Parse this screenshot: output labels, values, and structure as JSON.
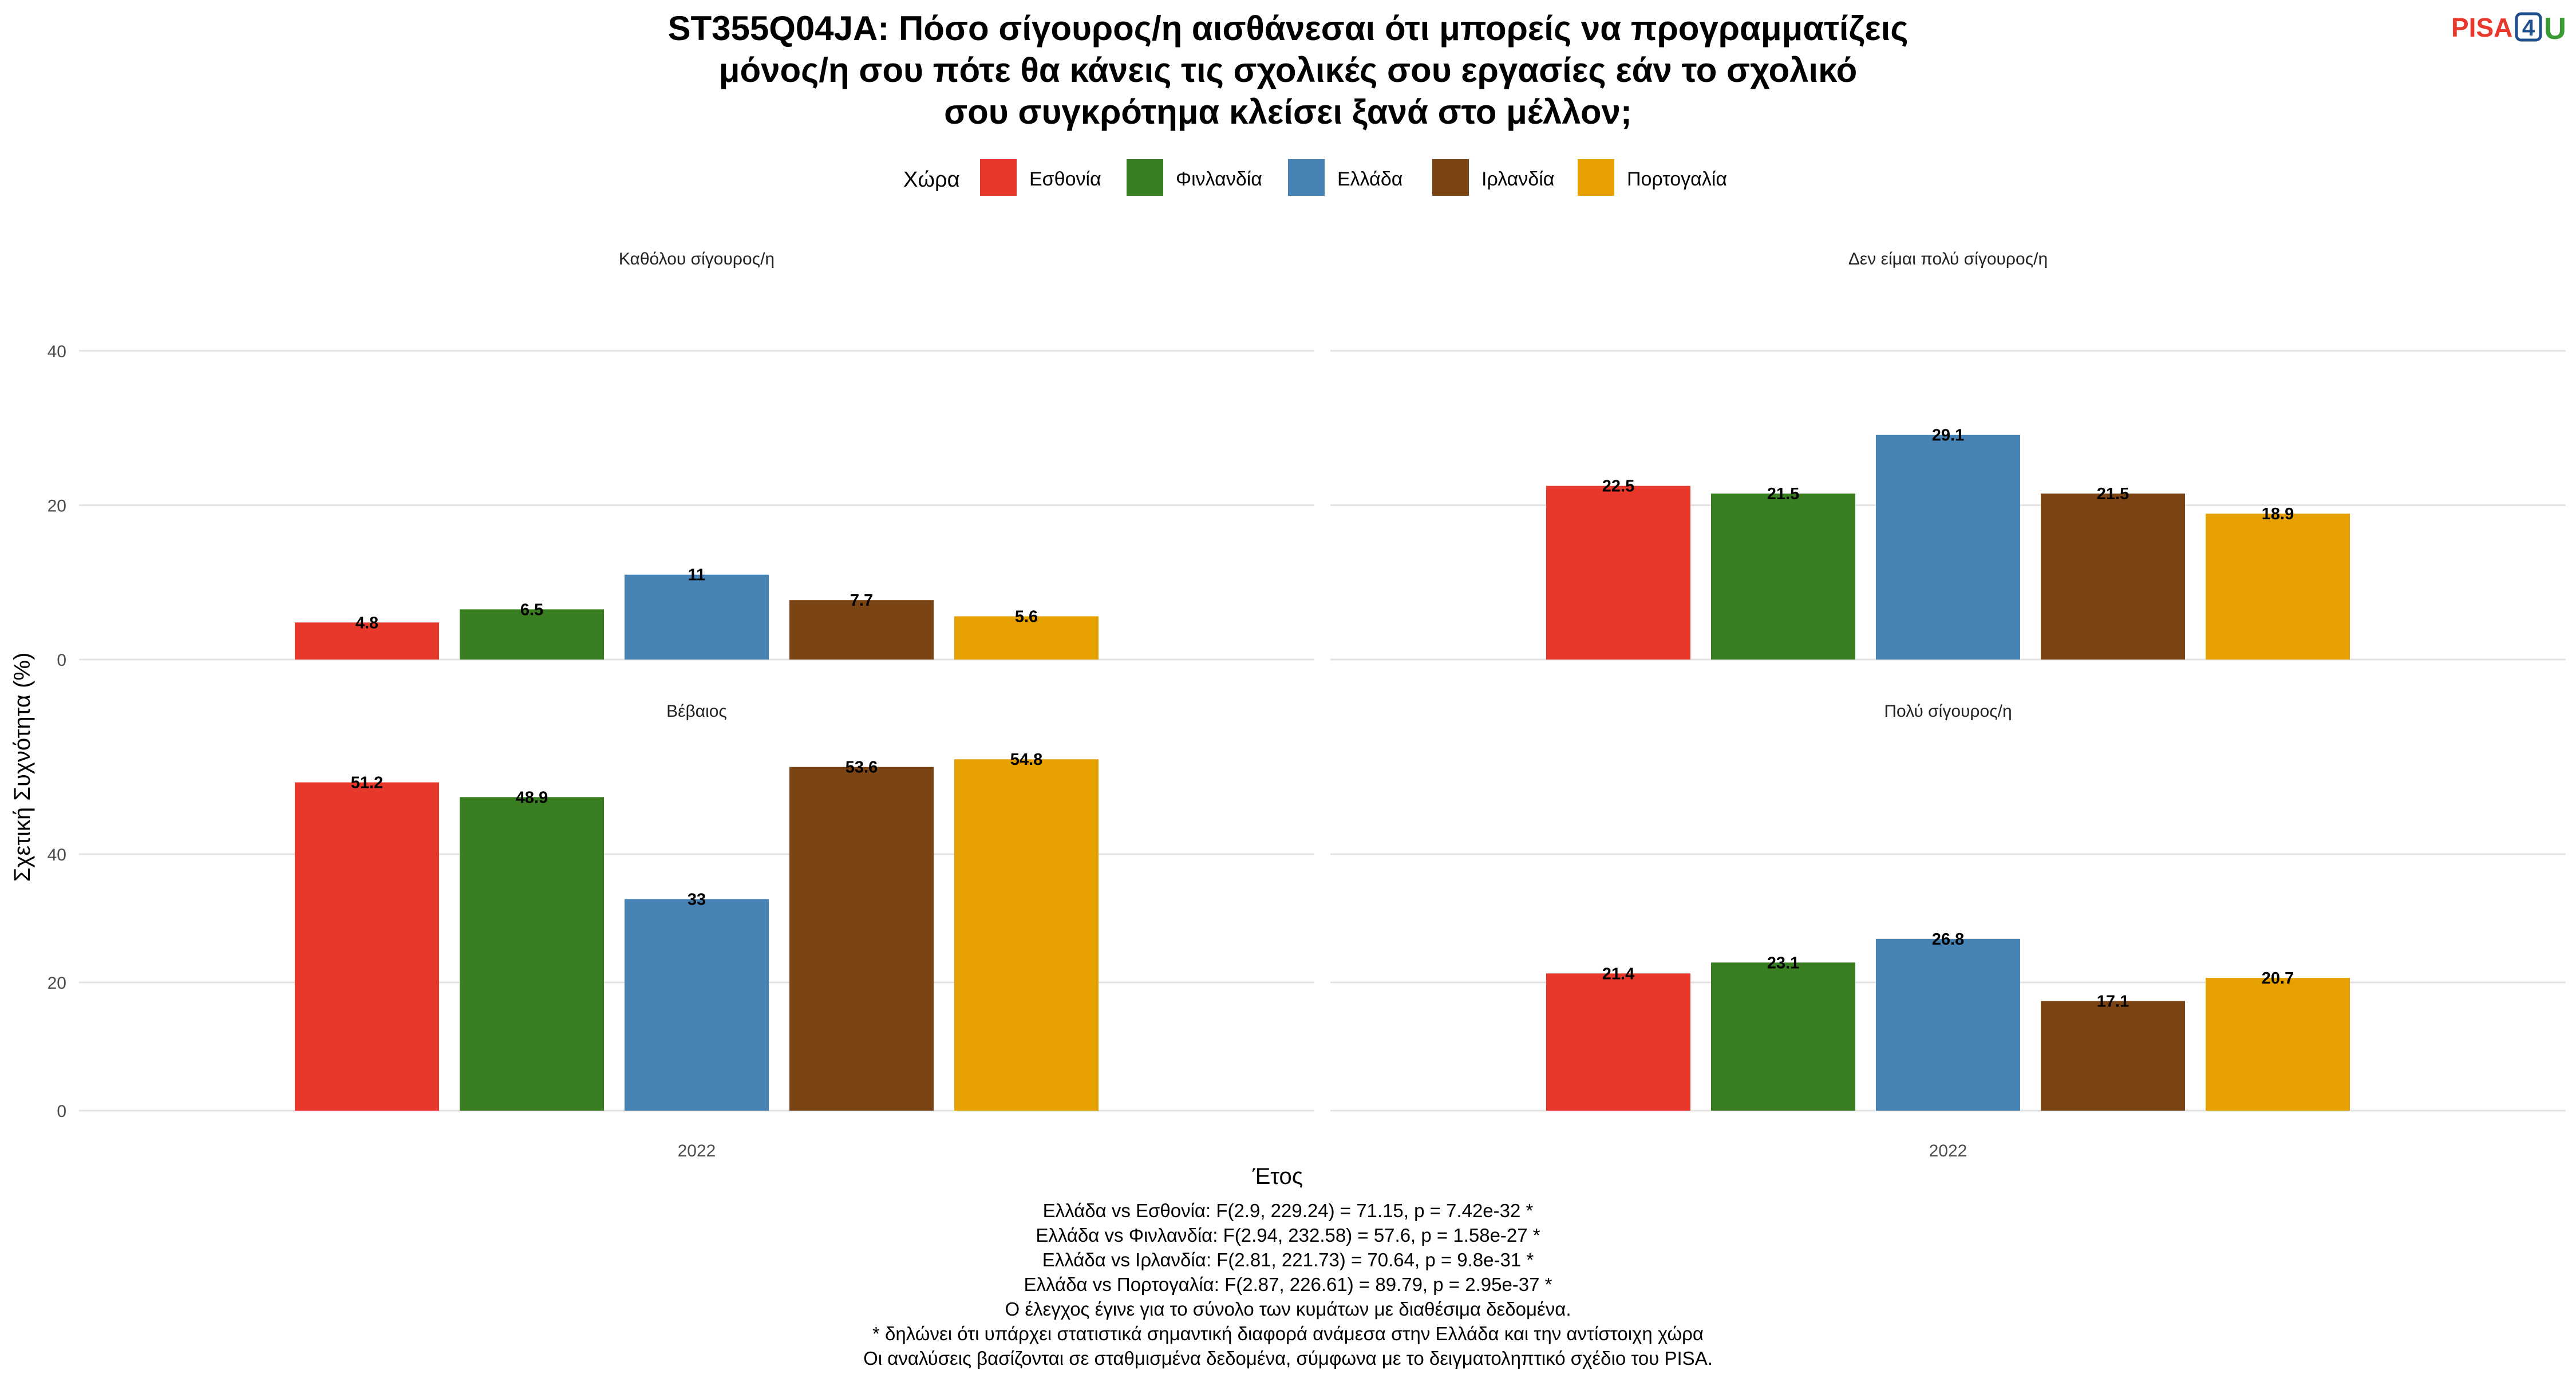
{
  "title_lines": [
    "ST355Q04JA: Πόσο σίγουρος/η αισθάνεσαι ότι μπορείς να προγραμματίζεις",
    "μόνος/η σου πότε θα κάνεις τις σχολικές σου εργασίες εάν το σχολικό",
    "σου συγκρότημα κλείσει ξανά στο μέλλον;"
  ],
  "logo": {
    "pisa": "PISA",
    "four": "4",
    "u": "U"
  },
  "legend": {
    "title": "Χώρα"
  },
  "colors": {
    "Εσθονία": "#e8382b",
    "Φινλανδία": "#3a7e22",
    "Ελλάδα": "#4682b4",
    "Ιρλανδία": "#7b4414",
    "Πορτογαλία": "#e6a000"
  },
  "chart_data": {
    "type": "bar",
    "xlabel": "Έτος",
    "ylabel": "Σχετική Συχνότητα (%)",
    "categories": [
      "2022"
    ],
    "countries": [
      "Εσθονία",
      "Φινλανδία",
      "Ελλάδα",
      "Ιρλανδία",
      "Πορτογαλία"
    ],
    "rows": [
      {
        "ylim": [
          0,
          50
        ],
        "yticks": [
          "0",
          "20",
          "40"
        ]
      },
      {
        "ylim": [
          0,
          60
        ],
        "yticks": [
          "0",
          "20",
          "40"
        ]
      }
    ],
    "facets": [
      {
        "title": "Καθόλου σίγουρος/η",
        "values": [
          4.8,
          6.5,
          11,
          7.7,
          5.6
        ],
        "labels": [
          "4.8",
          "6.5",
          "11",
          "7.7",
          "5.6"
        ]
      },
      {
        "title": "Δεν είμαι πολύ σίγουρος/η",
        "values": [
          22.5,
          21.5,
          29.1,
          21.5,
          18.9
        ],
        "labels": [
          "22.5",
          "21.5",
          "29.1",
          "21.5",
          "18.9"
        ]
      },
      {
        "title": "Βέβαιος",
        "values": [
          51.2,
          48.9,
          33,
          53.6,
          54.8
        ],
        "labels": [
          "51.2",
          "48.9",
          "33",
          "53.6",
          "54.8"
        ]
      },
      {
        "title": "Πολύ σίγουρος/η",
        "values": [
          21.4,
          23.1,
          26.8,
          17.1,
          20.7
        ],
        "labels": [
          "21.4",
          "23.1",
          "26.8",
          "17.1",
          "20.7"
        ]
      }
    ],
    "grid": true,
    "legend_position": "top"
  },
  "notes": [
    "Ελλάδα vs Εσθονία: F(2.9, 229.24) = 71.15, p = 7.42e-32 *",
    "Ελλάδα vs Φινλανδία: F(2.94, 232.58) = 57.6, p = 1.58e-27 *",
    "Ελλάδα vs Ιρλανδία: F(2.81, 221.73) = 70.64, p = 9.8e-31 *",
    "Ελλάδα vs Πορτογαλία: F(2.87, 226.61) = 89.79, p = 2.95e-37 *",
    "Ο έλεγχος έγινε για το σύνολο των κυμάτων με διαθέσιμα δεδομένα.",
    "* δηλώνει ότι υπάρχει στατιστικά σημαντική διαφορά ανάμεσα στην Ελλάδα και την αντίστοιχη χώρα",
    "Οι αναλύσεις βασίζονται σε σταθμισμένα δεδομένα, σύμφωνα με το δειγματοληπτικό σχέδιο του PISA."
  ]
}
